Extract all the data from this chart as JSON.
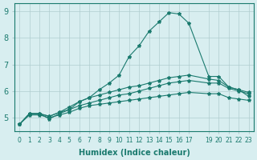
{
  "xlabel": "Humidex (Indice chaleur)",
  "xlim": [
    -0.5,
    23.5
  ],
  "ylim": [
    4.5,
    9.3
  ],
  "yticks": [
    5,
    6,
    7,
    8,
    9
  ],
  "xtick_labels": [
    "0",
    "1",
    "2",
    "3",
    "4",
    "5",
    "6",
    "7",
    "8",
    "9",
    "10",
    "11",
    "12",
    "13",
    "14",
    "15",
    "16",
    "17",
    "19",
    "20",
    "21",
    "22",
    "23"
  ],
  "bg_color": "#d8eef0",
  "grid_color": "#b0cdd0",
  "line_color": "#1a7a6e",
  "line1_x": [
    0,
    1,
    2,
    3,
    4,
    5,
    6,
    7,
    8,
    9,
    10,
    11,
    12,
    13,
    14,
    15,
    16,
    17,
    19,
    20,
    21,
    22,
    23
  ],
  "line1_y": [
    4.75,
    5.15,
    5.15,
    4.95,
    5.15,
    5.3,
    5.6,
    5.75,
    6.05,
    6.3,
    6.6,
    7.3,
    7.7,
    8.25,
    8.6,
    8.95,
    8.9,
    8.55,
    6.55,
    6.55,
    6.15,
    6.05,
    5.8
  ],
  "line2_x": [
    0,
    1,
    2,
    3,
    4,
    5,
    6,
    7,
    8,
    9,
    10,
    11,
    12,
    13,
    14,
    15,
    16,
    17,
    19,
    20,
    21,
    22,
    23
  ],
  "line2_y": [
    4.75,
    5.15,
    5.15,
    5.05,
    5.2,
    5.4,
    5.6,
    5.75,
    5.85,
    5.95,
    6.05,
    6.15,
    6.2,
    6.3,
    6.4,
    6.5,
    6.55,
    6.6,
    6.45,
    6.4,
    6.15,
    6.05,
    5.95
  ],
  "line3_x": [
    0,
    1,
    2,
    3,
    4,
    5,
    6,
    7,
    8,
    9,
    10,
    11,
    12,
    13,
    14,
    15,
    16,
    17,
    19,
    20,
    21,
    22,
    23
  ],
  "line3_y": [
    4.75,
    5.1,
    5.1,
    5.0,
    5.1,
    5.2,
    5.35,
    5.45,
    5.5,
    5.55,
    5.6,
    5.65,
    5.7,
    5.75,
    5.8,
    5.85,
    5.9,
    5.95,
    5.9,
    5.9,
    5.75,
    5.7,
    5.65
  ],
  "line4_x": [
    0,
    1,
    2,
    3,
    4,
    5,
    6,
    7,
    8,
    9,
    10,
    11,
    12,
    13,
    14,
    15,
    16,
    17,
    19,
    20,
    21,
    22,
    23
  ],
  "line4_y": [
    4.75,
    5.15,
    5.15,
    5.05,
    5.2,
    5.3,
    5.45,
    5.55,
    5.65,
    5.75,
    5.85,
    5.9,
    6.0,
    6.1,
    6.2,
    6.3,
    6.35,
    6.4,
    6.3,
    6.3,
    6.1,
    6.0,
    5.9
  ]
}
